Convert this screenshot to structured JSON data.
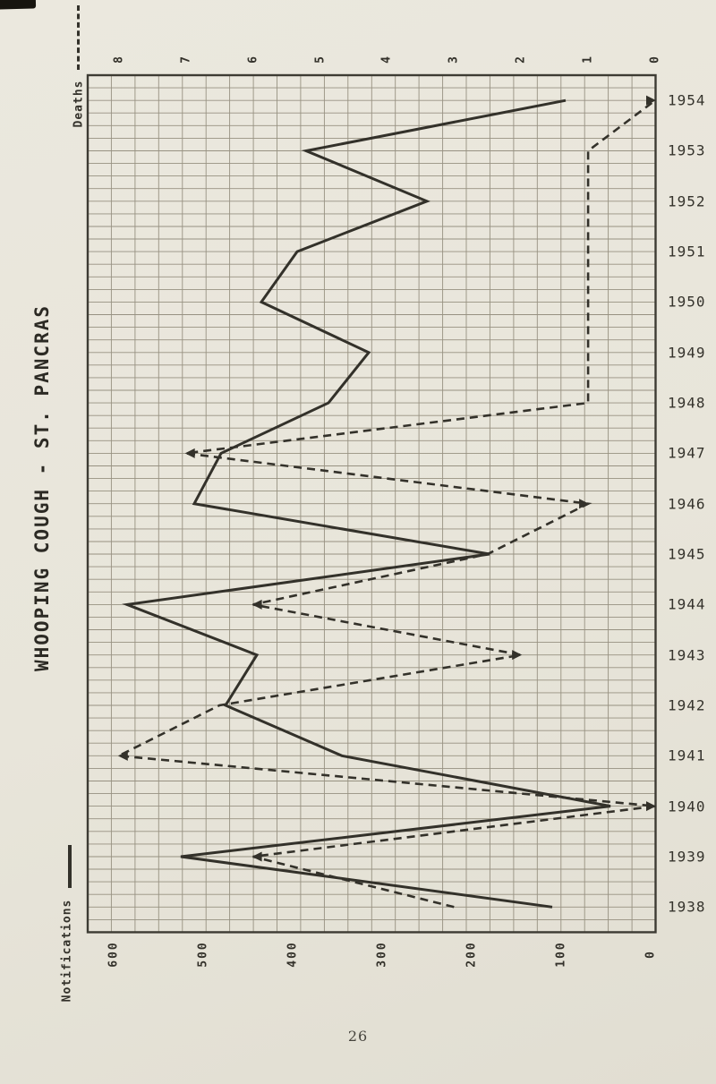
{
  "title": "WHOOPING COUGH - ST. PANCRAS",
  "page_number": "26",
  "legend": {
    "deaths_label": "Deaths",
    "notifications_label": "Notifications"
  },
  "axes": {
    "deaths_ticks": [
      "8",
      "7",
      "6",
      "5",
      "4",
      "3",
      "2",
      "1",
      "0"
    ],
    "notifications_ticks": [
      "600",
      "500",
      "400",
      "300",
      "200",
      "100",
      "0"
    ]
  },
  "chart_data": {
    "type": "line",
    "title": "WHOOPING COUGH - ST. PANCRAS",
    "orientation": "rotated: years run vertically (1954 top, 1938 bottom); values increase right-to-left",
    "categories": [
      "1938",
      "1939",
      "1940",
      "1941",
      "1942",
      "1943",
      "1944",
      "1945",
      "1946",
      "1947",
      "1948",
      "1949",
      "1950",
      "1951",
      "1952",
      "1953",
      "1954"
    ],
    "series": [
      {
        "name": "Notifications",
        "style": "solid",
        "axis": "bottom",
        "axis_range": [
          0,
          600
        ],
        "values": [
          110,
          525,
          45,
          345,
          475,
          440,
          585,
          180,
          510,
          480,
          360,
          315,
          435,
          395,
          250,
          385,
          95
        ]
      },
      {
        "name": "Deaths",
        "style": "dashed",
        "axis": "top",
        "axis_range": [
          0,
          8
        ],
        "values": [
          3,
          6,
          0,
          8,
          6.5,
          2,
          6,
          2.5,
          1,
          7,
          1,
          1,
          1,
          1,
          1,
          1,
          0
        ]
      }
    ],
    "grid": true,
    "legend_position": "left margin, rotated",
    "arrow_tips": [
      {
        "year": 1939,
        "dir": "left"
      },
      {
        "year": 1940,
        "dir": "right"
      },
      {
        "year": 1941,
        "dir": "left"
      },
      {
        "year": 1943,
        "dir": "right"
      },
      {
        "year": 1944,
        "dir": "left"
      },
      {
        "year": 1946,
        "dir": "right"
      },
      {
        "year": 1947,
        "dir": "left"
      },
      {
        "year": 1954,
        "dir": "right"
      }
    ]
  },
  "colors": {
    "paper": "#e8e5da",
    "ink": "#33312a",
    "grid": "#928c7c",
    "frame": "#3d3b33"
  }
}
